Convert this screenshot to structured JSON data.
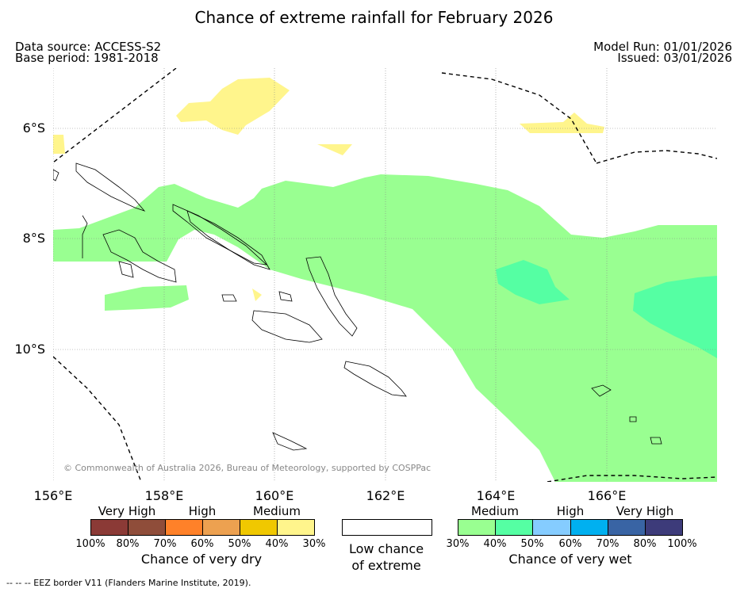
{
  "title": "Chance of extreme rainfall for February 2026",
  "meta": {
    "source": "Data source: ACCESS-S2",
    "base": "Base period: 1981-2018",
    "run": "Model Run: 01/01/2026",
    "issued": "Issued: 03/01/2026"
  },
  "map": {
    "lon_labels": [
      "156°E",
      "158°E",
      "160°E",
      "162°E",
      "164°E",
      "166°E"
    ],
    "lat_labels": [
      "6°S",
      "8°S",
      "10°S"
    ],
    "copyright": "© Commonwealth of Australia 2026, Bureau of Meteorology, supported by COSPPac",
    "footer": "--  --  -- EEZ border V11 (Flanders Marine Institute, 2019)."
  },
  "legend": {
    "dry": {
      "categories": [
        "Very High",
        "High",
        "Medium"
      ],
      "percents": [
        "100%",
        "80%",
        "70%",
        "60%",
        "50%",
        "40%",
        "30%"
      ],
      "colors": [
        "#8b3a36",
        "#8f4d3a",
        "#ff8129",
        "#eda150",
        "#f0c800",
        "#fff58c"
      ],
      "name": "Chance of very dry"
    },
    "low": {
      "line1": "Low chance",
      "line2": "of extreme",
      "color": "#ffffff"
    },
    "wet": {
      "categories": [
        "Medium",
        "High",
        "Very High"
      ],
      "percents": [
        "30%",
        "40%",
        "50%",
        "60%",
        "70%",
        "80%",
        "100%"
      ],
      "colors": [
        "#99ff91",
        "#55ffa3",
        "#85ccff",
        "#00b0f0",
        "#3964a4",
        "#3d3b7a"
      ],
      "name": "Chance of very wet"
    }
  }
}
